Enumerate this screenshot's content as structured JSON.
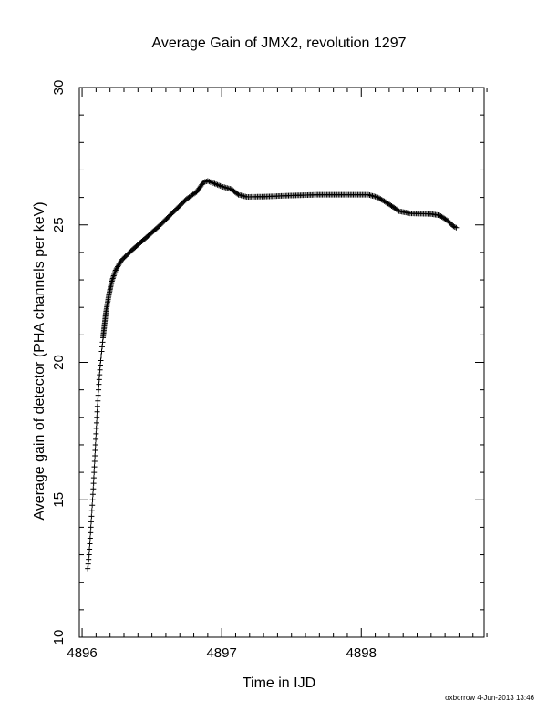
{
  "chart_data": {
    "type": "scatter",
    "title": "Average Gain of JMX2, revolution 1297",
    "xlabel": "Time in IJD",
    "ylabel": "Average gain of detector (PHA channels per keV)",
    "xlim": [
      4895.98,
      4898.88
    ],
    "ylim": [
      10,
      30
    ],
    "xticks": [
      4896,
      4897,
      4898
    ],
    "yticks": [
      10,
      15,
      20,
      25,
      30
    ],
    "xtick_labels": [
      "4896",
      "4897",
      "4898"
    ],
    "ytick_labels": [
      "10",
      "15",
      "20",
      "25",
      "30"
    ],
    "marker": "plus",
    "grid": false,
    "series": [
      {
        "color": "#000000",
        "curve": [
          [
            4896.04,
            12.5
          ],
          [
            4896.05,
            13.0
          ],
          [
            4896.06,
            13.8
          ],
          [
            4896.07,
            14.6
          ],
          [
            4896.08,
            15.4
          ],
          [
            4896.09,
            16.4
          ],
          [
            4896.1,
            17.4
          ],
          [
            4896.11,
            18.4
          ],
          [
            4896.12,
            19.2
          ],
          [
            4896.13,
            19.9
          ],
          [
            4896.15,
            20.9
          ],
          [
            4896.17,
            21.8
          ],
          [
            4896.19,
            22.4
          ],
          [
            4896.21,
            22.9
          ],
          [
            4896.24,
            23.35
          ],
          [
            4896.28,
            23.7
          ],
          [
            4896.35,
            24.05
          ],
          [
            4896.45,
            24.5
          ],
          [
            4896.55,
            24.95
          ],
          [
            4896.65,
            25.45
          ],
          [
            4896.75,
            25.95
          ],
          [
            4896.82,
            26.2
          ],
          [
            4896.87,
            26.55
          ],
          [
            4896.9,
            26.6
          ],
          [
            4896.95,
            26.5
          ],
          [
            4897.0,
            26.4
          ],
          [
            4897.07,
            26.3
          ],
          [
            4897.12,
            26.1
          ],
          [
            4897.18,
            26.02
          ],
          [
            4897.3,
            26.03
          ],
          [
            4897.5,
            26.07
          ],
          [
            4897.7,
            26.1
          ],
          [
            4897.9,
            26.1
          ],
          [
            4898.05,
            26.1
          ],
          [
            4898.12,
            26.0
          ],
          [
            4898.2,
            25.75
          ],
          [
            4898.27,
            25.5
          ],
          [
            4898.35,
            25.42
          ],
          [
            4898.5,
            25.4
          ],
          [
            4898.56,
            25.35
          ],
          [
            4898.62,
            25.15
          ],
          [
            4898.66,
            24.95
          ],
          [
            4898.68,
            24.9
          ]
        ]
      }
    ]
  },
  "footer": {
    "text": "oxborrow  4-Jun-2013 13:46"
  }
}
